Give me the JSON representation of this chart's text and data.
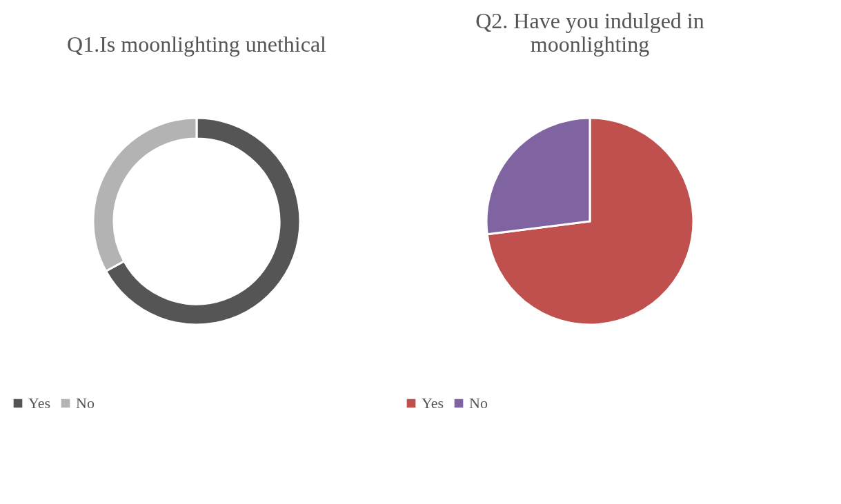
{
  "chart_data": [
    {
      "type": "donut",
      "title": "Q1.Is moonlighting unethical",
      "categories": [
        "Yes",
        "No"
      ],
      "values": [
        67,
        33
      ],
      "colors": [
        "#555555",
        "#b3b3b3"
      ],
      "legend": "bottom"
    },
    {
      "type": "pie",
      "title": "Q2. Have you indulged in\nmoonlighting",
      "categories": [
        "Yes",
        "No"
      ],
      "values": [
        73,
        27
      ],
      "colors": [
        "#c0504d",
        "#8064a2"
      ],
      "legend": "bottom"
    }
  ]
}
